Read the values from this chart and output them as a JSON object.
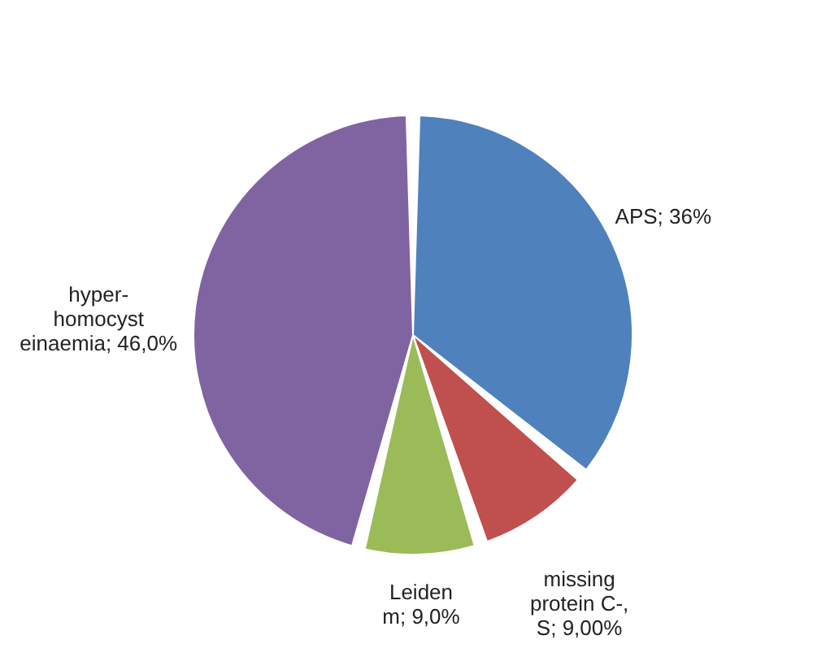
{
  "chart_data": {
    "type": "pie",
    "categories": [
      "APS",
      "missing protein C-, S",
      "Leiden m",
      "hyper-homocyst einaemia"
    ],
    "values": [
      36,
      9,
      9,
      46
    ],
    "value_labels": [
      "36%",
      "9,00%",
      "9,0%",
      "46,0%"
    ],
    "colors": [
      "#4f81bd",
      "#c0504d",
      "#9bbb59",
      "#8064a2"
    ],
    "legend": false
  }
}
